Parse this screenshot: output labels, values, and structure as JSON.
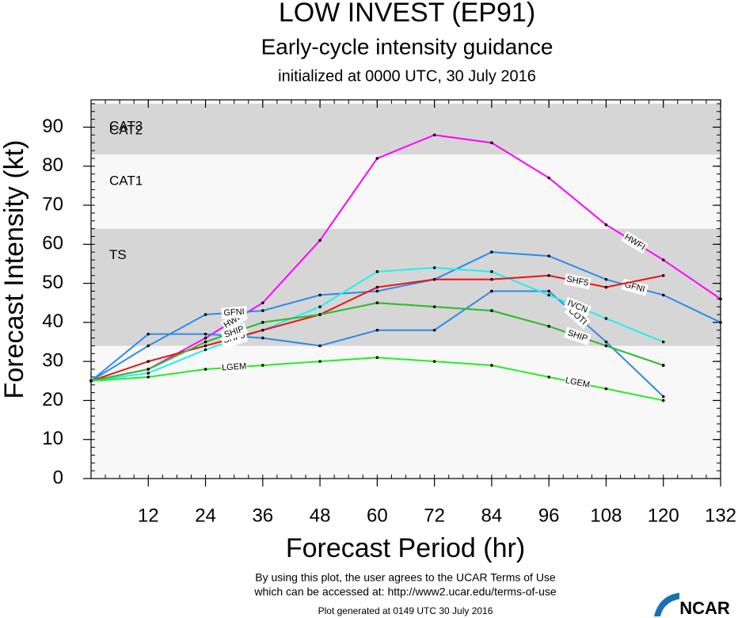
{
  "chart_data": {
    "type": "line",
    "title": "LOW INVEST (EP91)",
    "subtitle": "Early-cycle intensity guidance",
    "initialized": "initialized at 0000 UTC, 30 July 2016",
    "xlabel": "Forecast Period (hr)",
    "ylabel": "Forecast Intensity (kt)",
    "x": [
      0,
      12,
      24,
      36,
      48,
      60,
      72,
      84,
      96,
      108,
      120,
      132
    ],
    "xlim": [
      0,
      132
    ],
    "xticks": [
      12,
      24,
      36,
      48,
      60,
      72,
      84,
      96,
      108,
      120,
      132
    ],
    "ylim": [
      0,
      97
    ],
    "yticks": [
      0,
      10,
      20,
      30,
      40,
      50,
      60,
      70,
      80,
      90
    ],
    "bands": [
      {
        "label": "TS",
        "range": [
          34,
          64
        ],
        "color": "#d6d6d6"
      },
      {
        "label": "CAT1",
        "range": [
          64,
          83
        ],
        "color": "#f8f8f8"
      },
      {
        "label": "CAT2",
        "range": [
          83,
          96
        ],
        "color": "#d6d6d6"
      },
      {
        "label": "CAT3",
        "range": [
          96,
          97
        ],
        "color": "#f8f8f8"
      }
    ],
    "series": [
      {
        "name": "HWFI",
        "color": "#ff00ff",
        "values": [
          25,
          28,
          36,
          45,
          61,
          82,
          88,
          86,
          77,
          65,
          56,
          46
        ]
      },
      {
        "name": "GFNI",
        "color": "#2b8ce8",
        "values": [
          25,
          34,
          42,
          43,
          47,
          48,
          51,
          58,
          57,
          51,
          47,
          40
        ]
      },
      {
        "name": "COTI",
        "color": "#2b8ce8",
        "values": [
          25,
          37,
          37,
          36,
          34,
          38,
          38,
          48,
          48,
          35,
          21,
          null
        ]
      },
      {
        "name": "IVCN",
        "color": "#22eeee",
        "values": [
          25,
          27,
          33,
          38,
          44,
          53,
          54,
          53,
          47,
          41,
          35,
          null
        ]
      },
      {
        "name": "SHF5",
        "color": "#ee1111",
        "values": [
          25,
          30,
          34,
          38,
          42,
          49,
          51,
          51,
          52,
          49,
          52,
          null
        ]
      },
      {
        "name": "DSHP",
        "color": "#33bb33",
        "values": [
          25,
          28,
          35,
          40,
          42,
          45,
          44,
          43,
          39,
          34,
          29,
          null
        ]
      },
      {
        "name": "SHIP",
        "color": "#33bb33",
        "values": [
          25,
          28,
          35,
          40,
          42,
          45,
          44,
          43,
          39,
          34,
          29,
          null
        ]
      },
      {
        "name": "LGEM",
        "color": "#22ee22",
        "values": [
          25,
          26,
          28,
          29,
          30,
          31,
          30,
          29,
          26,
          23,
          20,
          null
        ]
      }
    ],
    "terms": [
      "By using this plot, the user agrees to the UCAR Terms of Use",
      "which can be accessed at: http://www2.ucar.edu/terms-of-use"
    ],
    "generated": "Plot generated at 0149 UTC   30 July 2016",
    "logo": "NCAR"
  }
}
